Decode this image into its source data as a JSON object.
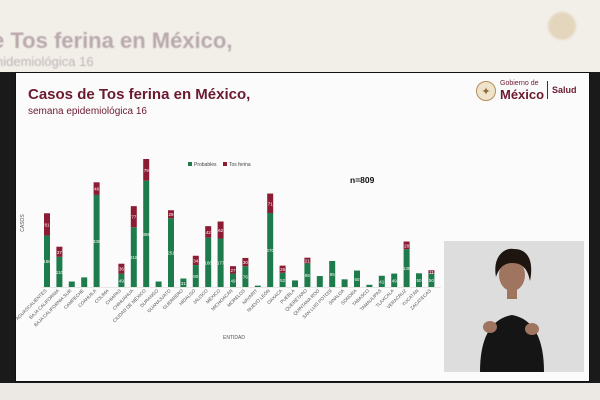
{
  "background": {
    "title": "e Tos ferina en México,",
    "subtitle": "nidemiológica 16"
  },
  "slide": {
    "title": "Casos de Tos ferina en México,",
    "subtitle": "semana epidemiológica 16"
  },
  "logo": {
    "line1": "Gobierno de",
    "line2": "México",
    "line3": "Salud",
    "icon": "eagle-seal-icon"
  },
  "colors": {
    "probables": "#1e7b4b",
    "tos_ferina": "#8c1c34",
    "title": "#6b1a2f"
  },
  "chart_data": {
    "type": "bar",
    "stacked": true,
    "title": "",
    "ylabel": "CASOS",
    "xlabel": "ENTIDAD",
    "annotation": "n=809",
    "legend_position": "top-center",
    "categories": [
      "AGUASCALIENTES",
      "BAJA CALIFORNIA",
      "BAJA CALIFORNIA SUR",
      "CAMPECHE",
      "COAHUILA",
      "COLIMA",
      "CHIAPAS",
      "CHIHUAHUA",
      "CIUDAD DE MÉXICO",
      "DURANGO",
      "GUANAJUATO",
      "GUERRERO",
      "HIDALGO",
      "JALISCO",
      "MÉXICO",
      "MICHOACÁN",
      "MORELOS",
      "NAYARIT",
      "NUEVO LEÓN",
      "OAXACA",
      "PUEBLA",
      "QUERÉTARO",
      "QUINTANA ROO",
      "SAN LUIS POTOSÍ",
      "SINALOA",
      "SONORA",
      "TABASCO",
      "TAMAULIPAS",
      "TLAXCALA",
      "VERACRUZ",
      "YUCATÁN",
      "ZACATECAS"
    ],
    "series": [
      {
        "name": "Probables",
        "values": [
          188,
          110,
          20,
          35,
          336,
          0,
          49,
          218,
          388,
          20,
          251,
          31,
          80,
          180,
          177,
          49,
          76,
          5,
          270,
          52,
          24,
          86,
          40,
          95,
          28,
          60,
          8,
          41,
          49,
          138,
          50,
          50
        ]
      },
      {
        "name": "Tos ferina",
        "values": [
          81,
          37,
          0,
          0,
          46,
          0,
          36,
          77,
          79,
          0,
          29,
          0,
          34,
          42,
          62,
          27,
          30,
          0,
          71,
          26,
          0,
          21,
          0,
          0,
          0,
          0,
          0,
          0,
          0,
          28,
          0,
          11
        ]
      }
    ],
    "bar_labels": {
      "Probables": [
        "188",
        "110",
        "",
        "",
        "336",
        "",
        "49",
        "218",
        "388",
        "",
        "251",
        "31",
        "80",
        "180",
        "177",
        "49",
        "76",
        "",
        "270",
        "52",
        "",
        "86",
        "",
        "95",
        "",
        "60",
        "",
        "41",
        "49",
        "138",
        "50",
        "50"
      ],
      "Tos ferina": [
        "81",
        "37",
        "",
        "",
        "46",
        "",
        "36",
        "77",
        "79",
        "",
        "29",
        "",
        "34",
        "42",
        "62",
        "27",
        "30",
        "",
        "71",
        "26",
        "",
        "21",
        "",
        "",
        "",
        "",
        "",
        "",
        "",
        "28",
        "",
        "11"
      ]
    }
  }
}
